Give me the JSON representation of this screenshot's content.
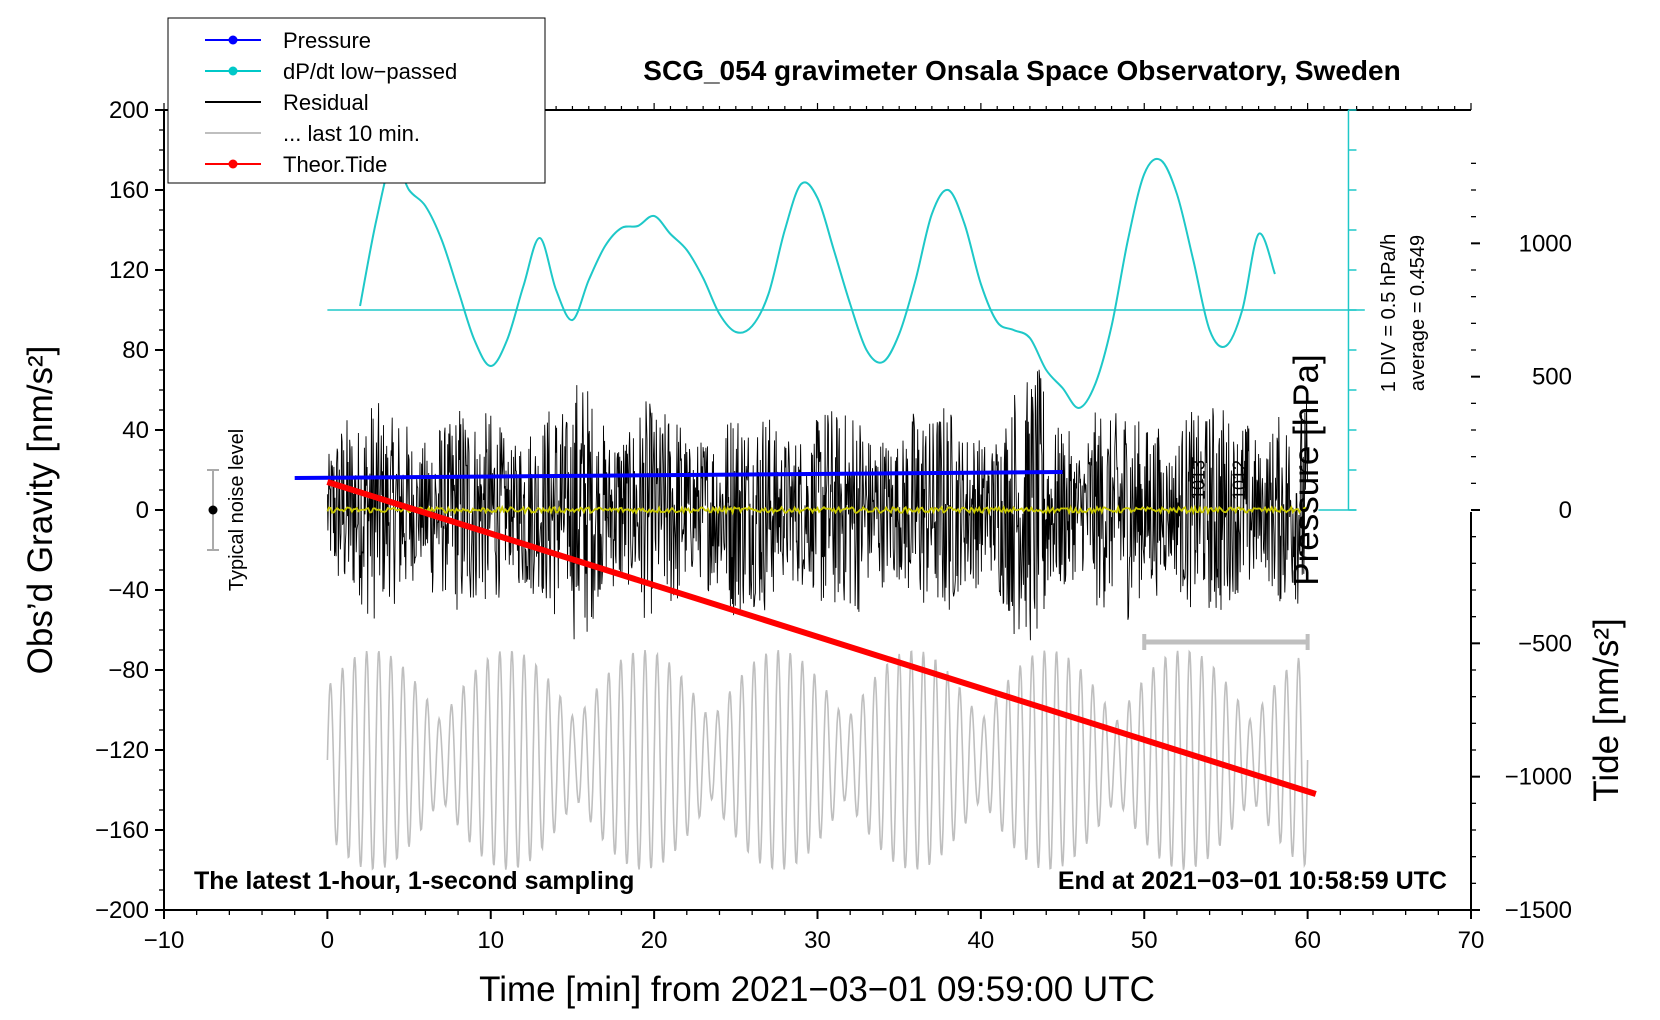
{
  "chart_data": {
    "type": "line",
    "title": "SCG_054 gravimeter Onsala Space Observatory, Sweden",
    "xlabel": "Time [min] from 2021−03−01 09:59:00 UTC",
    "ylabel_left": "Obs’d Gravity [nm/s²]",
    "ylabel_right": "Tide [nm/s²]",
    "ylabel_pressure": "Pressure [hPa]",
    "xlim": [
      -10,
      70
    ],
    "ylim_left": [
      -200,
      200
    ],
    "ylim_right": [
      -1500,
      1500
    ],
    "x_ticks": [
      -10,
      0,
      10,
      20,
      30,
      40,
      50,
      60,
      70
    ],
    "x_tick_labels": [
      "−10",
      "0",
      "10",
      "20",
      "30",
      "40",
      "50",
      "60",
      "70"
    ],
    "y_left_ticks": [
      -200,
      -160,
      -120,
      -80,
      -40,
      0,
      40,
      80,
      120,
      160,
      200
    ],
    "y_left_tick_labels": [
      "−200",
      "−160",
      "−120",
      "−80",
      "−40",
      "0",
      "40",
      "80",
      "120",
      "160",
      "200"
    ],
    "y_right_ticks": [
      -1500,
      -1000,
      -500,
      0,
      500,
      1000
    ],
    "y_right_tick_labels": [
      "−1500",
      "−1000",
      "−500",
      "0",
      "500",
      "1000"
    ],
    "annotation_bottom_left": "The latest 1-hour, 1-second sampling",
    "annotation_bottom_right": "End at 2021−03−01 10:58:59 UTC",
    "annotation_div": "1 DIV = 0.5 hPa/h",
    "annotation_avg": "average = 0.4549",
    "annotation_noise": "Typical noise level",
    "pressure_scale_labels": [
      "1013",
      "1012"
    ],
    "legend": [
      {
        "label": "Pressure",
        "color": "#0000ff",
        "marker": true
      },
      {
        "label": "dP/dt low−passed",
        "color": "#00c8c8",
        "marker": true
      },
      {
        "label": "Residual",
        "color": "#000000",
        "marker": false
      },
      {
        "label": "... last 10 min.",
        "color": "#bfbfbf",
        "marker": false
      },
      {
        "label": "Theor.Tide",
        "color": "#ff0000",
        "marker": true
      }
    ],
    "series": [
      {
        "name": "Pressure",
        "color": "#0000ff",
        "x": [
          -2,
          45
        ],
        "y": [
          16,
          19
        ]
      },
      {
        "name": "dP/dt low−passed",
        "color": "#1ec8c8",
        "baseline": 100,
        "x": [
          2,
          3,
          4,
          5,
          6,
          7,
          8,
          9,
          10,
          11,
          12,
          13,
          14,
          15,
          16,
          17,
          18,
          19,
          20,
          21,
          22,
          23,
          24,
          25,
          26,
          27,
          28,
          29,
          30,
          31,
          32,
          33,
          34,
          35,
          36,
          37,
          38,
          39,
          40,
          41,
          42,
          43,
          44,
          45,
          46,
          47,
          48,
          49,
          50,
          51,
          52,
          53,
          54,
          55,
          56,
          57,
          58
        ],
        "y": [
          102,
          145,
          175,
          160,
          152,
          135,
          110,
          85,
          72,
          85,
          112,
          136,
          110,
          95,
          115,
          132,
          141,
          142,
          147,
          138,
          130,
          116,
          98,
          89,
          92,
          108,
          140,
          163,
          156,
          130,
          103,
          80,
          74,
          88,
          115,
          148,
          160,
          143,
          113,
          94,
          90,
          86,
          70,
          61,
          51,
          63,
          92,
          135,
          168,
          175,
          158,
          125,
          90,
          82,
          100,
          138,
          118
        ]
      },
      {
        "name": "Residual",
        "color": "#000000",
        "x_range": [
          0,
          60
        ],
        "amplitude": [
          -80,
          75
        ]
      },
      {
        "name": "Residual low−passed",
        "color": "#c8c800",
        "x_range": [
          0,
          60
        ],
        "level": 0
      },
      {
        "name": "... last 10 min.",
        "color": "#bfbfbf",
        "x_range": [
          0,
          60
        ],
        "amplitude": [
          -180,
          -70
        ]
      },
      {
        "name": "Theor.Tide",
        "color": "#ff0000",
        "axis": "right",
        "x": [
          0,
          60.5
        ],
        "y": [
          105,
          -1065
        ]
      }
    ],
    "noise_level": {
      "x": -7,
      "center": 0,
      "bar": [
        -20,
        20
      ]
    },
    "last10_bar": {
      "x": [
        50,
        60
      ],
      "y": -66
    }
  }
}
